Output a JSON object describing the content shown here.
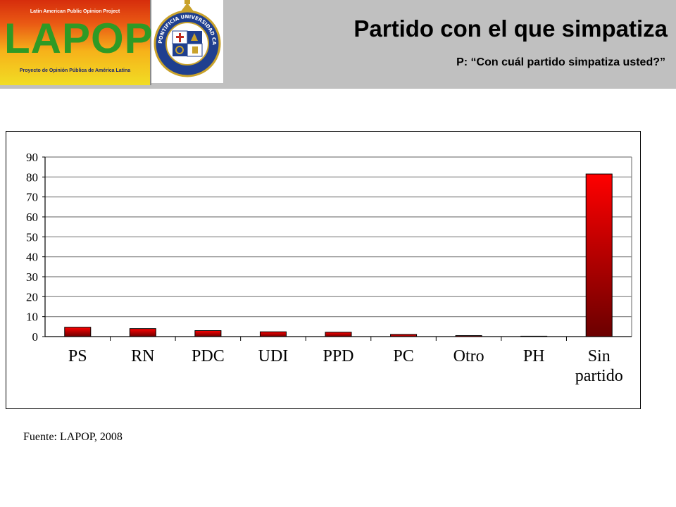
{
  "header": {
    "title": "Partido con el que simpatiza",
    "subtitle": "P: “Con cuál partido simpatiza usted?”",
    "logo": {
      "top_text": "Latin American Public Opinion Project",
      "word": "LAPOP",
      "bottom_text": "Proyecto de Opinión Pública de América Latina"
    },
    "crest": {
      "ring_text": "PONTIFICIA UNIVERSIDAD CATÓLICA DE CHILE"
    },
    "background_color": "#c0c0c0"
  },
  "chart_data": {
    "type": "bar",
    "title": "",
    "xlabel": "",
    "ylabel": "",
    "categories": [
      "PS",
      "RN",
      "PDC",
      "UDI",
      "PPD",
      "PC",
      "Otro",
      "PH",
      "Sin partido"
    ],
    "category_lines": [
      [
        "PS"
      ],
      [
        "RN"
      ],
      [
        "PDC"
      ],
      [
        "UDI"
      ],
      [
        "PPD"
      ],
      [
        "PC"
      ],
      [
        "Otro"
      ],
      [
        "PH"
      ],
      [
        "Sin",
        "partido"
      ]
    ],
    "values": [
      4.7,
      4.0,
      3.0,
      2.4,
      2.2,
      1.1,
      0.5,
      0.1,
      81.5
    ],
    "ylim": [
      0,
      90
    ],
    "yticks": [
      0,
      10,
      20,
      30,
      40,
      50,
      60,
      70,
      80,
      90
    ],
    "grid": true,
    "legend": "none",
    "bar_color_top": "#ff0000",
    "bar_color_bottom": "#6b0000"
  },
  "source": "Fuente: LAPOP, 2008"
}
